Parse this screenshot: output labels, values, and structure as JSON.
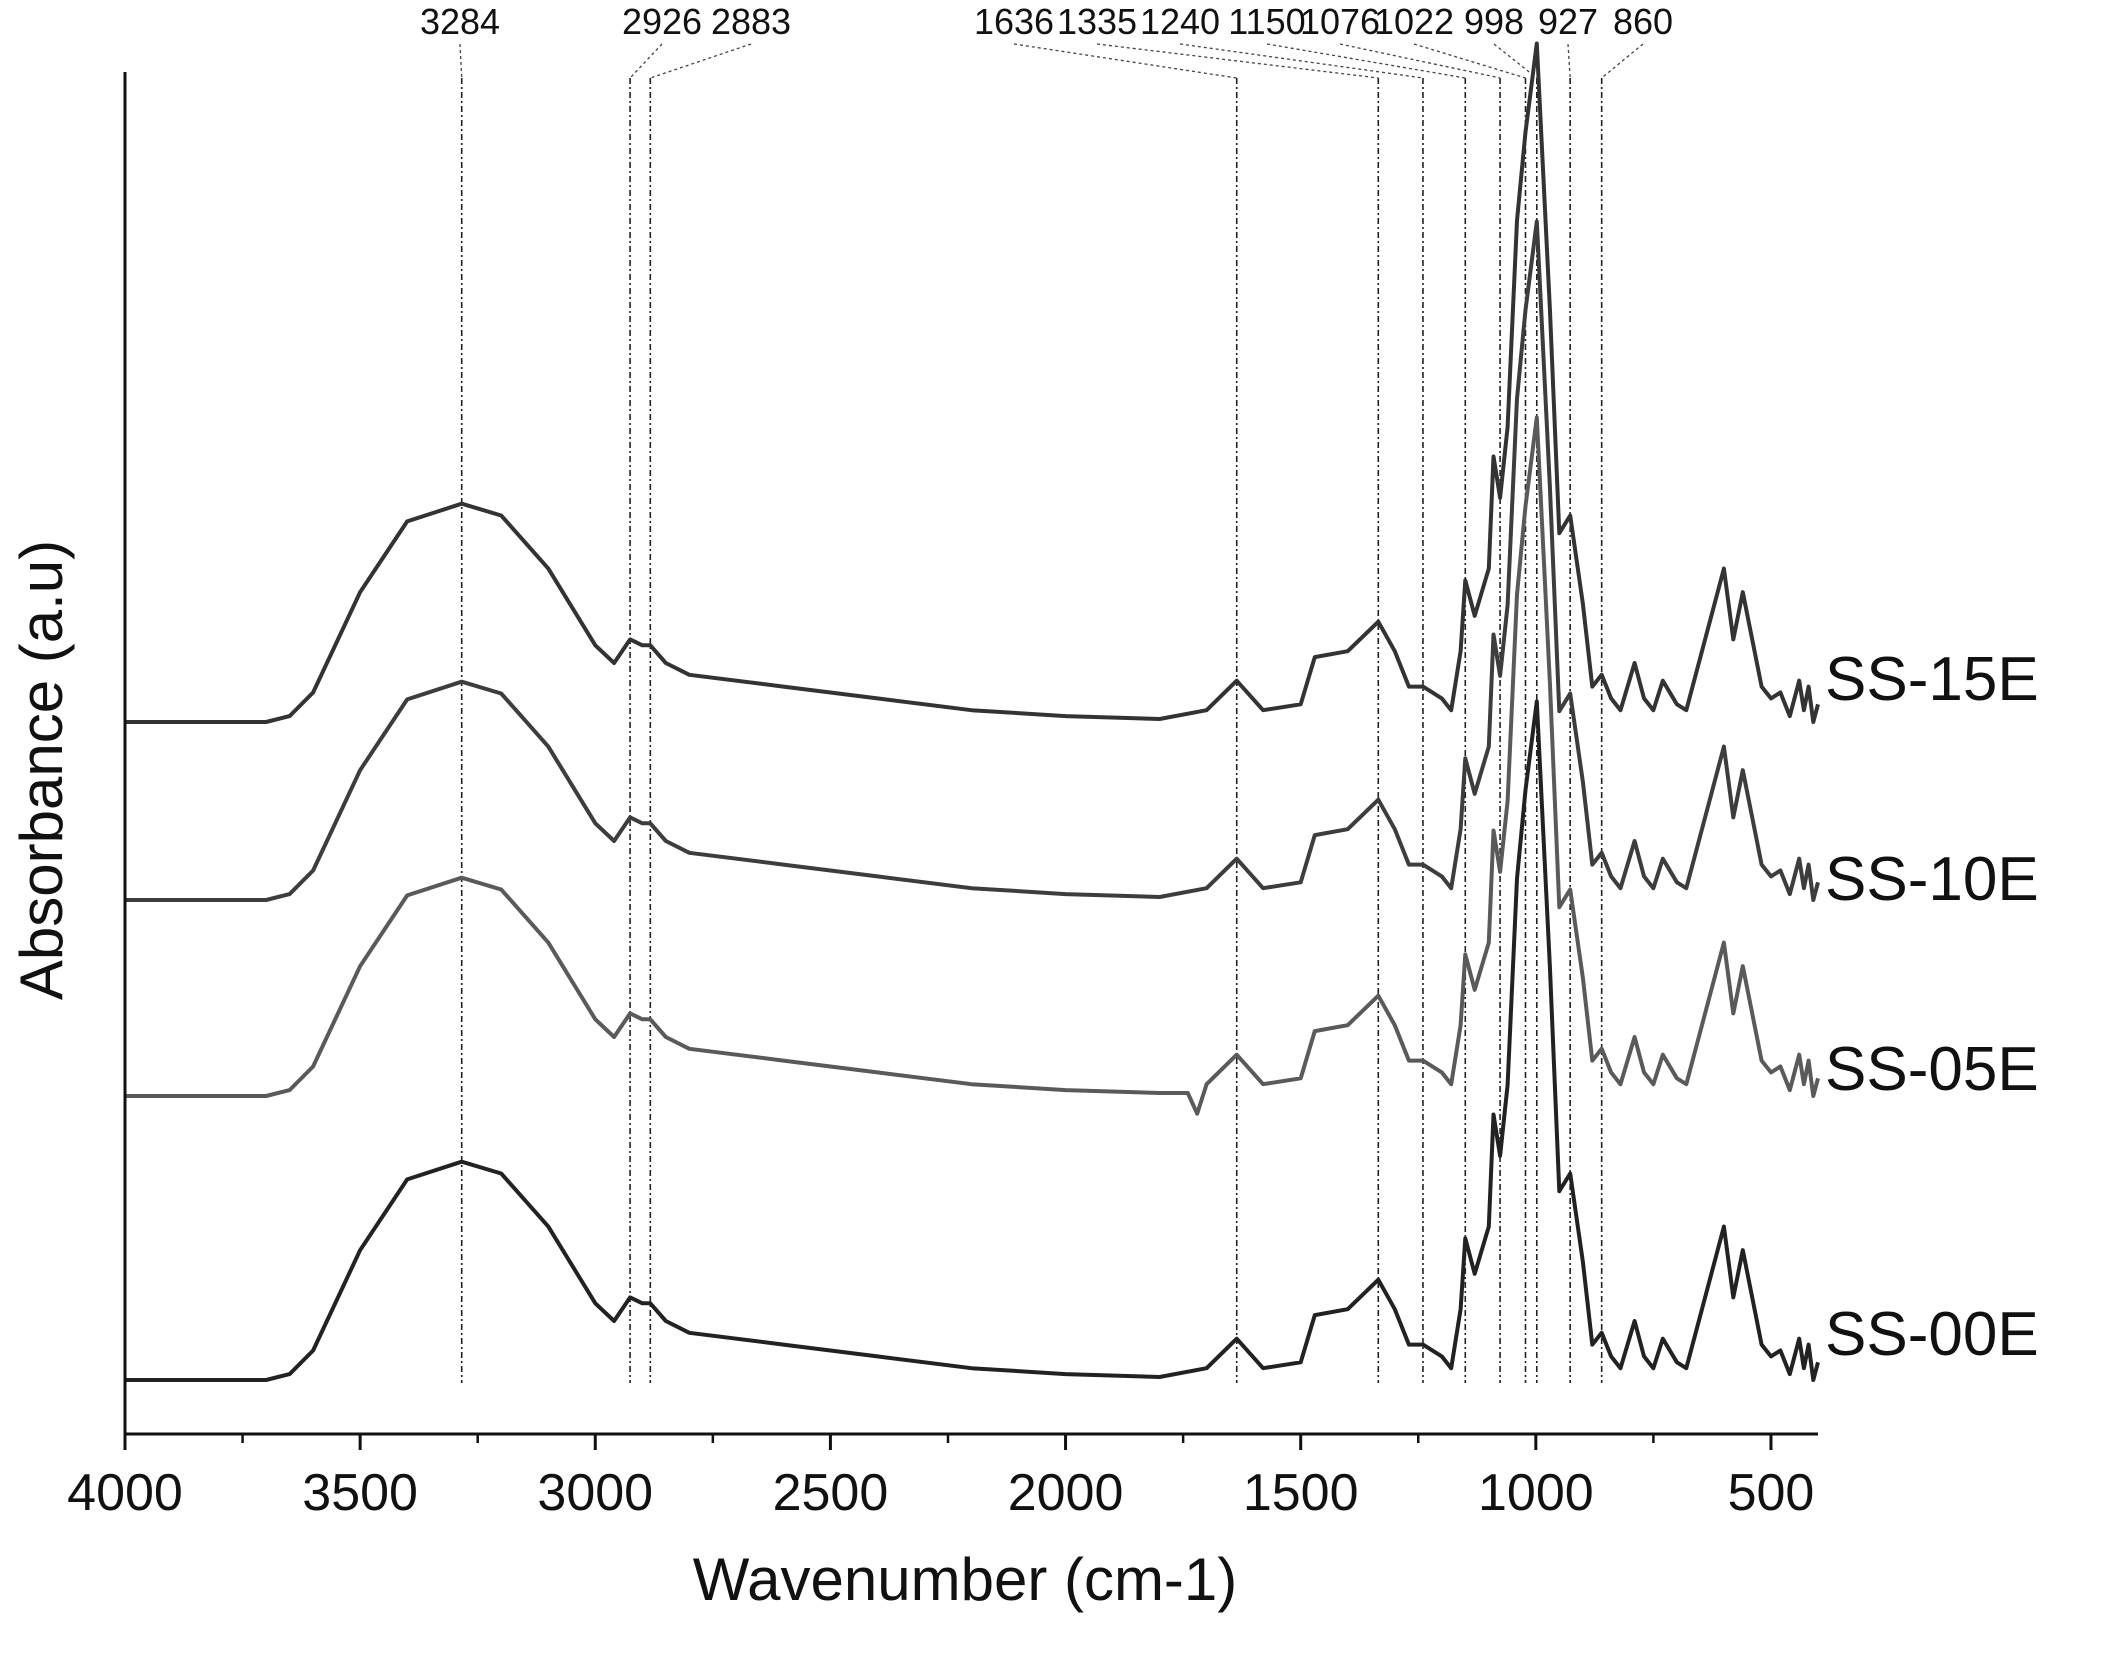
{
  "chart_data": {
    "type": "line",
    "title": "",
    "xlabel": "Wavenumber (cm-1)",
    "ylabel": "Absorbance (a.u)",
    "x_reversed": true,
    "xlim": [
      4000,
      400
    ],
    "x_ticks": [
      4000,
      3500,
      3000,
      2500,
      2000,
      1500,
      1000,
      500
    ],
    "x_tick_labels": [
      "4000",
      "3500",
      "3000",
      "2500",
      "2000",
      "1500",
      "1000",
      "500"
    ],
    "y_ticks_shown": false,
    "grid": false,
    "legend": "series labels at right end of each trace",
    "peak_markers": [
      3284,
      2926,
      2883,
      1636,
      1335,
      1240,
      1150,
      1076,
      1022,
      998,
      927,
      860
    ],
    "peak_labels": [
      "3284",
      "2926",
      "2883",
      "1636",
      "1335",
      "1240",
      "1150",
      "1076",
      "1022",
      "998",
      "927",
      "860"
    ],
    "series": [
      {
        "name": "SS-15E",
        "color": "#333333",
        "x": [
          4000,
          3700,
          3650,
          3600,
          3500,
          3400,
          3284,
          3200,
          3100,
          3000,
          2960,
          2926,
          2900,
          2883,
          2850,
          2800,
          2600,
          2400,
          2200,
          2000,
          1800,
          1700,
          1636,
          1580,
          1500,
          1470,
          1400,
          1335,
          1300,
          1270,
          1240,
          1200,
          1180,
          1160,
          1150,
          1130,
          1100,
          1090,
          1076,
          1060,
          1040,
          1022,
          998,
          970,
          950,
          927,
          900,
          880,
          860,
          840,
          820,
          790,
          770,
          750,
          730,
          700,
          680,
          640,
          600,
          580,
          560,
          540,
          520,
          500,
          480,
          460,
          440,
          430,
          420,
          410,
          400
        ],
        "y": [
          0,
          0,
          0.01,
          0.05,
          0.22,
          0.34,
          0.37,
          0.35,
          0.26,
          0.13,
          0.1,
          0.14,
          0.13,
          0.13,
          0.1,
          0.08,
          0.06,
          0.04,
          0.02,
          0.01,
          0.005,
          0.02,
          0.07,
          0.02,
          0.03,
          0.11,
          0.12,
          0.17,
          0.12,
          0.06,
          0.06,
          0.04,
          0.02,
          0.12,
          0.24,
          0.18,
          0.26,
          0.45,
          0.38,
          0.5,
          0.85,
          1.0,
          1.15,
          0.7,
          0.32,
          0.35,
          0.2,
          0.06,
          0.08,
          0.04,
          0.02,
          0.1,
          0.04,
          0.02,
          0.07,
          0.03,
          0.02,
          0.14,
          0.26,
          0.14,
          0.22,
          0.14,
          0.06,
          0.04,
          0.05,
          0.01,
          0.07,
          0.02,
          0.06,
          0.0,
          0.03
        ]
      },
      {
        "name": "SS-10E",
        "color": "#3d3d3d",
        "x": [
          4000,
          3700,
          3650,
          3600,
          3500,
          3400,
          3284,
          3200,
          3100,
          3000,
          2960,
          2926,
          2900,
          2883,
          2850,
          2800,
          2600,
          2400,
          2200,
          2000,
          1800,
          1700,
          1636,
          1580,
          1500,
          1470,
          1400,
          1335,
          1300,
          1270,
          1240,
          1200,
          1180,
          1160,
          1150,
          1130,
          1100,
          1090,
          1076,
          1060,
          1040,
          1022,
          998,
          970,
          950,
          927,
          900,
          880,
          860,
          840,
          820,
          790,
          770,
          750,
          730,
          700,
          680,
          640,
          600,
          580,
          560,
          540,
          520,
          500,
          480,
          460,
          440,
          430,
          420,
          410,
          400
        ],
        "y": [
          0,
          0,
          0.01,
          0.05,
          0.22,
          0.34,
          0.37,
          0.35,
          0.26,
          0.13,
          0.1,
          0.14,
          0.13,
          0.13,
          0.1,
          0.08,
          0.06,
          0.04,
          0.02,
          0.01,
          0.005,
          0.02,
          0.07,
          0.02,
          0.03,
          0.11,
          0.12,
          0.17,
          0.12,
          0.06,
          0.06,
          0.04,
          0.02,
          0.12,
          0.24,
          0.18,
          0.26,
          0.45,
          0.38,
          0.5,
          0.85,
          1.0,
          1.15,
          0.7,
          0.32,
          0.35,
          0.2,
          0.06,
          0.08,
          0.04,
          0.02,
          0.1,
          0.04,
          0.02,
          0.07,
          0.03,
          0.02,
          0.14,
          0.26,
          0.14,
          0.22,
          0.14,
          0.06,
          0.04,
          0.05,
          0.01,
          0.07,
          0.02,
          0.06,
          0.0,
          0.03
        ]
      },
      {
        "name": "SS-05E",
        "color": "#5a5a5a",
        "x": [
          4000,
          3700,
          3650,
          3600,
          3500,
          3400,
          3284,
          3200,
          3100,
          3000,
          2960,
          2926,
          2900,
          2883,
          2850,
          2800,
          2600,
          2400,
          2200,
          2000,
          1800,
          1740,
          1720,
          1700,
          1636,
          1580,
          1500,
          1470,
          1400,
          1335,
          1300,
          1270,
          1240,
          1200,
          1180,
          1160,
          1150,
          1130,
          1100,
          1090,
          1076,
          1060,
          1040,
          1022,
          998,
          970,
          950,
          927,
          900,
          880,
          860,
          840,
          820,
          790,
          770,
          750,
          730,
          700,
          680,
          640,
          600,
          580,
          560,
          540,
          520,
          500,
          480,
          460,
          440,
          430,
          420,
          410,
          400
        ],
        "y": [
          0,
          0,
          0.01,
          0.05,
          0.22,
          0.34,
          0.37,
          0.35,
          0.26,
          0.13,
          0.1,
          0.14,
          0.13,
          0.13,
          0.1,
          0.08,
          0.06,
          0.04,
          0.02,
          0.01,
          0.005,
          0.005,
          -0.03,
          0.02,
          0.07,
          0.02,
          0.03,
          0.11,
          0.12,
          0.17,
          0.12,
          0.06,
          0.06,
          0.04,
          0.02,
          0.12,
          0.24,
          0.18,
          0.26,
          0.45,
          0.38,
          0.5,
          0.85,
          1.0,
          1.15,
          0.7,
          0.32,
          0.35,
          0.2,
          0.06,
          0.08,
          0.04,
          0.02,
          0.1,
          0.04,
          0.02,
          0.07,
          0.03,
          0.02,
          0.14,
          0.26,
          0.14,
          0.22,
          0.14,
          0.06,
          0.04,
          0.05,
          0.01,
          0.07,
          0.02,
          0.06,
          0.0,
          0.03
        ]
      },
      {
        "name": "SS-00E",
        "color": "#222222",
        "x": [
          4000,
          3700,
          3650,
          3600,
          3500,
          3400,
          3284,
          3200,
          3100,
          3000,
          2960,
          2926,
          2900,
          2883,
          2850,
          2800,
          2600,
          2400,
          2200,
          2000,
          1800,
          1700,
          1636,
          1580,
          1500,
          1470,
          1400,
          1335,
          1300,
          1270,
          1240,
          1200,
          1180,
          1160,
          1150,
          1130,
          1100,
          1090,
          1076,
          1060,
          1040,
          1022,
          998,
          970,
          950,
          927,
          900,
          880,
          860,
          840,
          820,
          790,
          770,
          750,
          730,
          700,
          680,
          640,
          600,
          580,
          560,
          540,
          520,
          500,
          480,
          460,
          440,
          430,
          420,
          410,
          400
        ],
        "y": [
          0,
          0,
          0.01,
          0.05,
          0.22,
          0.34,
          0.37,
          0.35,
          0.26,
          0.13,
          0.1,
          0.14,
          0.13,
          0.13,
          0.1,
          0.08,
          0.06,
          0.04,
          0.02,
          0.01,
          0.005,
          0.02,
          0.07,
          0.02,
          0.03,
          0.11,
          0.12,
          0.17,
          0.12,
          0.06,
          0.06,
          0.04,
          0.02,
          0.12,
          0.24,
          0.18,
          0.26,
          0.45,
          0.38,
          0.5,
          0.85,
          1.0,
          1.15,
          0.7,
          0.32,
          0.35,
          0.2,
          0.06,
          0.08,
          0.04,
          0.02,
          0.1,
          0.04,
          0.02,
          0.07,
          0.03,
          0.02,
          0.14,
          0.26,
          0.14,
          0.22,
          0.14,
          0.06,
          0.04,
          0.05,
          0.01,
          0.07,
          0.02,
          0.06,
          0.0,
          0.03
        ]
      }
    ]
  }
}
